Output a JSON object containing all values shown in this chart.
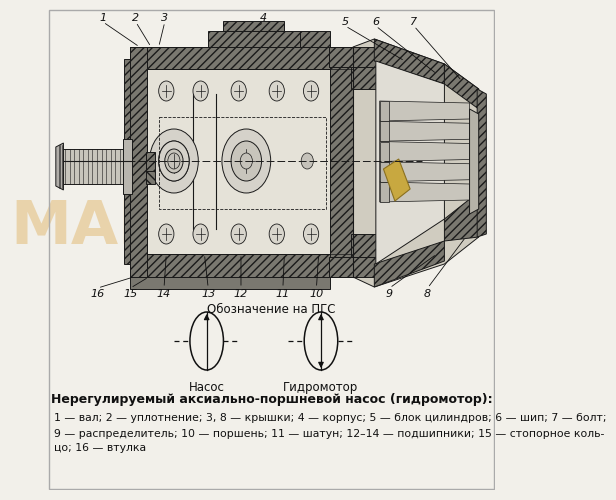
{
  "bg_color": "#f2f0ea",
  "title": "Нерегулируемый аксиально-поршневой насос (гидромотор):",
  "symbol_title": "Обозначение на ПГС",
  "pump_label": "Насос",
  "motor_label": "Гидромотор",
  "desc1": "1 — вал; 2 — уплотнение; 3, 8 — крышки; 4 — корпус; 5 — блок цилиндров; 6 — шип; 7 — болт;",
  "desc2": "9 — распределитель; 10 — поршень; 11 — шатун; 12–14 — подшипники; 15 — стопорное коль-",
  "desc3": "цо; 16 — втулка",
  "watermark": "МАШСЕРВИС",
  "wm_color": "#d4890a",
  "lc": "#1a1a1a",
  "hatch_fc": "#7a7870",
  "hatch_dark": "#4a4840",
  "interior_fc": "#e5e2d8",
  "shaft_fc": "#c8c5bc"
}
